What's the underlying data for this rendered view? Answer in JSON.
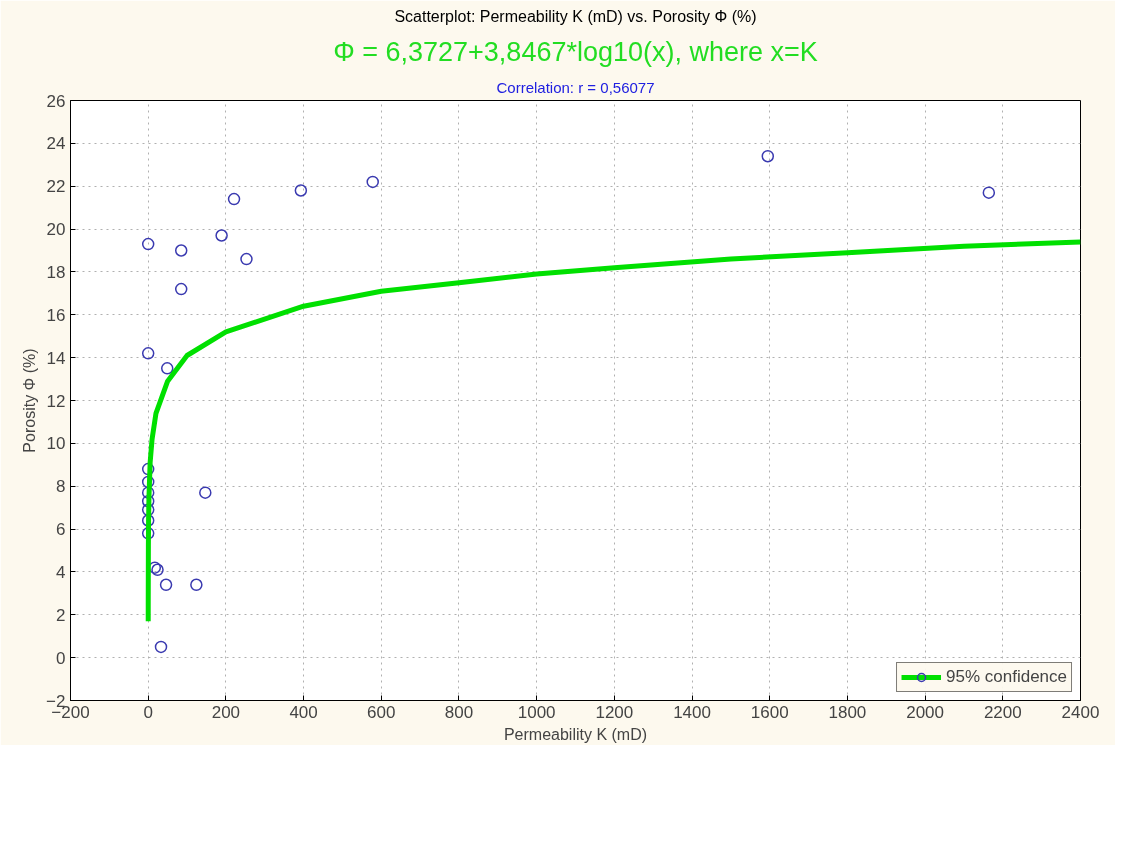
{
  "chart_data": {
    "type": "scatter",
    "title": "Scatterplot: Permeability K (mD) vs. Porosity Φ (%)",
    "subtitle": "Φ = 6,3727+3,8467*log10(x), where x=K",
    "annotations": [
      "Correlation: r = 0,56077"
    ],
    "xlabel": "Permeability K (mD)",
    "ylabel": "Porosity Φ (%)",
    "xlim": [
      -200,
      2400
    ],
    "ylim": [
      -2,
      26
    ],
    "xticks": [
      -200,
      0,
      200,
      400,
      600,
      800,
      1000,
      1200,
      1400,
      1600,
      1800,
      2000,
      2200,
      2400
    ],
    "yticks": [
      -2,
      0,
      2,
      4,
      6,
      8,
      10,
      12,
      14,
      16,
      18,
      20,
      22,
      24,
      26
    ],
    "grid": true,
    "legend": "bottom right",
    "series": [
      {
        "name": "95% confidence",
        "color": "#3a3ab0",
        "marker": "circle",
        "x": [
          1595,
          2164,
          0,
          85,
          85,
          189,
          221,
          253,
          393,
          578,
          0,
          49,
          0,
          0,
          0,
          0,
          0,
          0,
          0,
          147,
          17,
          24,
          46,
          124,
          33
        ],
        "values": [
          23.4,
          21.7,
          19.3,
          19.0,
          17.2,
          19.7,
          21.4,
          18.6,
          21.8,
          22.2,
          14.2,
          13.5,
          8.8,
          8.2,
          7.7,
          7.3,
          6.9,
          6.4,
          5.8,
          7.7,
          4.2,
          4.1,
          3.4,
          3.4,
          0.5
        ]
      },
      {
        "type": "line",
        "color": "#00e000",
        "line_style": "solid",
        "x": [
          0.06,
          0.1,
          0.5,
          1,
          2,
          5,
          10,
          20,
          50,
          100,
          200,
          400,
          600,
          800,
          1000,
          1200,
          1500,
          1800,
          2100,
          2400
        ],
        "values": [
          1.7,
          2.5,
          5.2,
          6.4,
          7.5,
          9.1,
          10.2,
          11.4,
          12.9,
          14.1,
          15.2,
          16.4,
          17.1,
          17.5,
          17.9,
          18.2,
          18.6,
          18.9,
          19.2,
          19.4
        ]
      }
    ]
  }
}
